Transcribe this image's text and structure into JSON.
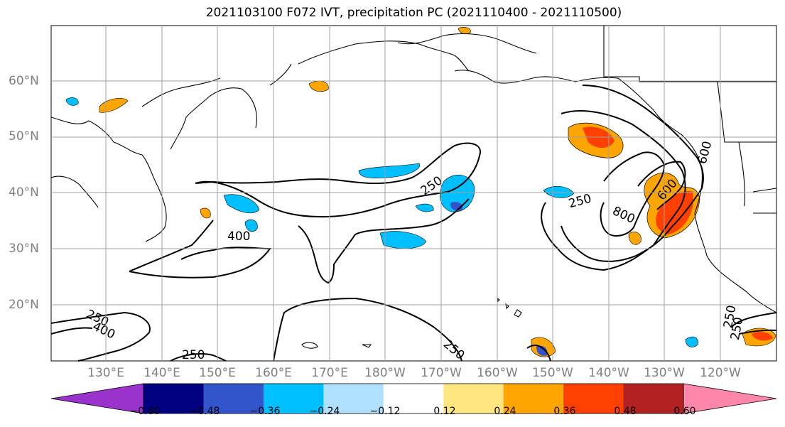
{
  "title": "2021103100 F072 IVT, precipitation PC (2021110400 - 2021110500)",
  "lat_labels": [
    "60°N",
    "50°N",
    "40°N",
    "30°N",
    "20°N"
  ],
  "lon_labels": [
    "130°E",
    "140°E",
    "150°E",
    "160°E",
    "170°E",
    "180°W",
    "170°W",
    "160°W",
    "150°W",
    "140°W",
    "130°W",
    "120°W"
  ],
  "contour_labels": [
    "250",
    "250",
    "400",
    "250",
    "400",
    "250",
    "250",
    "250",
    "600",
    "800",
    "600",
    "250"
  ],
  "colorbar": {
    "ticks": [
      "−0.60",
      "−0.48",
      "−0.36",
      "−0.24",
      "−0.12",
      "0.12",
      "0.24",
      "0.36",
      "0.48",
      "0.60"
    ],
    "colors": [
      "#9933cc",
      "#000080",
      "#3355cc",
      "#00bfff",
      "#b0e0ff",
      "#ffffff",
      "#ffe680",
      "#ffa500",
      "#ff4000",
      "#b22222",
      "#ff88aa"
    ]
  },
  "colors": {
    "contour": "#000000",
    "grid": "#a0a0a0",
    "land": "#000000"
  }
}
